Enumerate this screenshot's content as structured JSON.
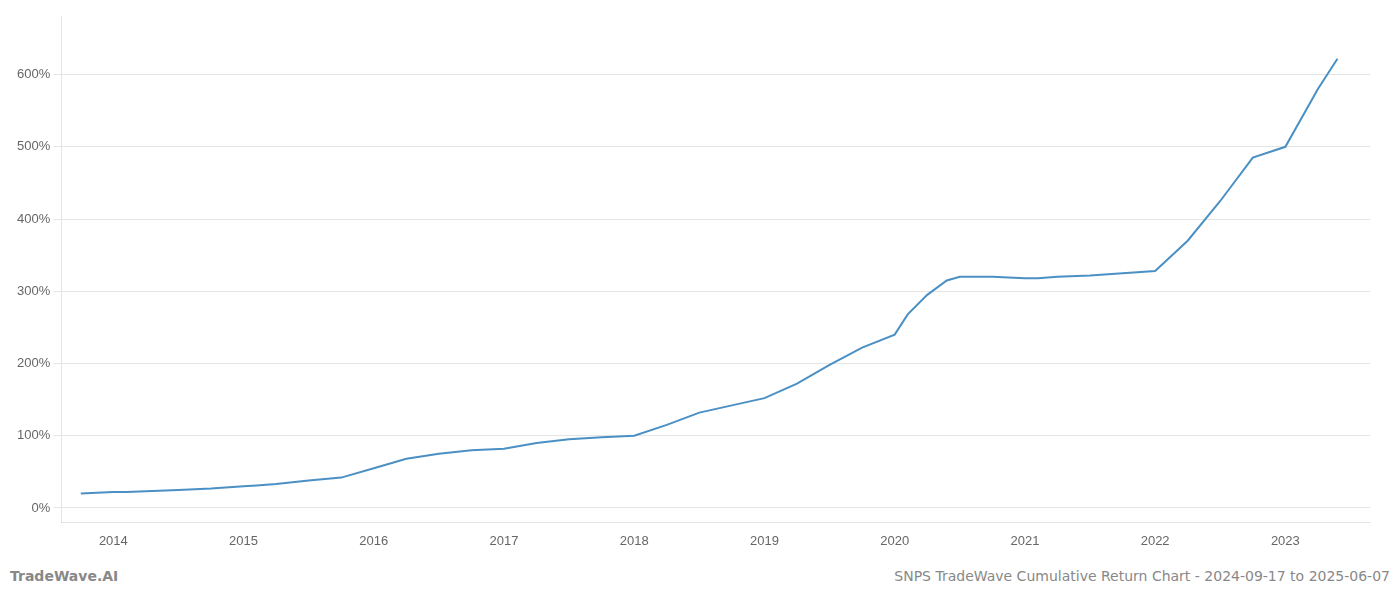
{
  "chart_data": {
    "type": "line",
    "annotations": [
      "TradeWave.AI",
      "SNPS TradeWave Cumulative Return Chart - 2024-09-17 to 2025-06-07"
    ],
    "x": [
      2013.75,
      2014.0,
      2014.1,
      2014.25,
      2014.5,
      2014.75,
      2015.0,
      2015.1,
      2015.25,
      2015.5,
      2015.75,
      2016.0,
      2016.25,
      2016.5,
      2016.75,
      2017.0,
      2017.25,
      2017.5,
      2017.75,
      2018.0,
      2018.25,
      2018.5,
      2018.75,
      2019.0,
      2019.25,
      2019.5,
      2019.75,
      2020.0,
      2020.1,
      2020.25,
      2020.4,
      2020.5,
      2020.75,
      2021.0,
      2021.1,
      2021.25,
      2021.5,
      2021.75,
      2022.0,
      2022.25,
      2022.5,
      2022.75,
      2023.0,
      2023.25,
      2023.4
    ],
    "values": [
      20,
      22,
      22,
      23,
      25,
      27,
      30,
      31,
      33,
      38,
      42,
      55,
      68,
      75,
      80,
      82,
      90,
      95,
      98,
      100,
      115,
      132,
      142,
      152,
      172,
      198,
      222,
      240,
      268,
      295,
      315,
      320,
      320,
      318,
      318,
      320,
      322,
      325,
      328,
      370,
      425,
      485,
      500,
      580,
      622
    ],
    "color": "#4a90c4",
    "xlim": [
      2013.6,
      2023.65
    ],
    "xticks": [
      2014,
      2015,
      2016,
      2017,
      2018,
      2019,
      2020,
      2021,
      2022,
      2023
    ],
    "ylim": [
      -20,
      680
    ],
    "yticks": [
      {
        "value": 0,
        "label": "0%"
      },
      {
        "value": 100,
        "label": "100%"
      },
      {
        "value": 200,
        "label": "200%"
      },
      {
        "value": 300,
        "label": "300%"
      },
      {
        "value": 400,
        "label": "400%"
      },
      {
        "value": 500,
        "label": "500%"
      },
      {
        "value": 600,
        "label": "600%"
      }
    ],
    "grid": "y"
  }
}
